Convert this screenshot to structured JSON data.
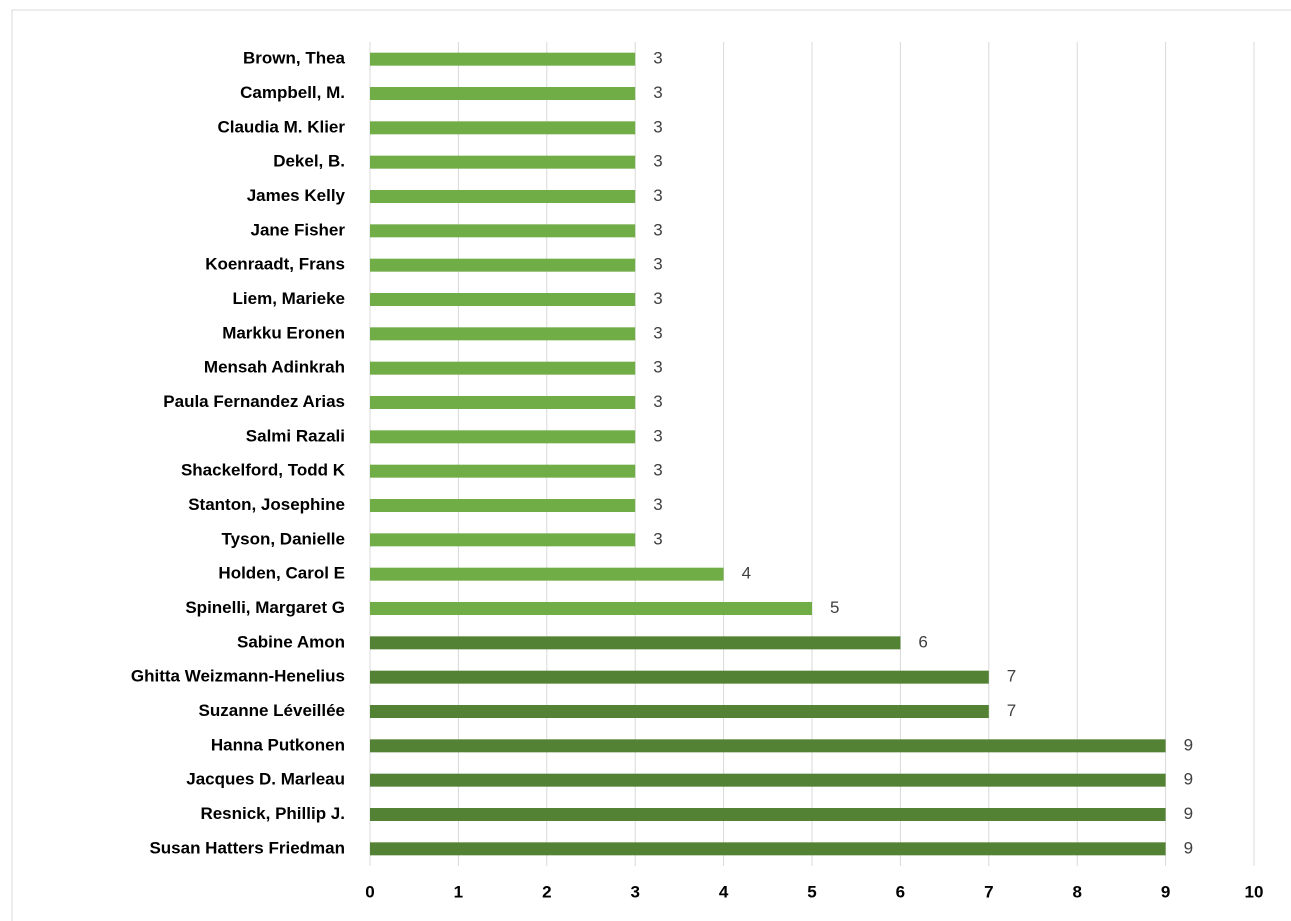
{
  "chart_data": {
    "type": "barh",
    "categories": [
      "Brown, Thea",
      "Campbell, M.",
      "Claudia M. Klier",
      "Dekel, B.",
      "James Kelly",
      "Jane Fisher",
      "Koenraadt, Frans",
      "Liem, Marieke",
      "Markku Eronen",
      "Mensah Adinkrah",
      "Paula Fernandez Arias",
      "Salmi Razali",
      "Shackelford, Todd K",
      "Stanton, Josephine",
      "Tyson, Danielle",
      "Holden, Carol E",
      "Spinelli, Margaret G",
      "Sabine Amon",
      "Ghitta Weizmann-Henelius",
      "Suzanne Léveillée",
      "Hanna Putkonen",
      "Jacques D. Marleau",
      "Resnick, Phillip J.",
      "Susan Hatters Friedman"
    ],
    "values": [
      3,
      3,
      3,
      3,
      3,
      3,
      3,
      3,
      3,
      3,
      3,
      3,
      3,
      3,
      3,
      4,
      5,
      6,
      7,
      7,
      9,
      9,
      9,
      9
    ],
    "colors": [
      "#70ad47",
      "#70ad47",
      "#70ad47",
      "#70ad47",
      "#70ad47",
      "#70ad47",
      "#70ad47",
      "#70ad47",
      "#70ad47",
      "#70ad47",
      "#70ad47",
      "#70ad47",
      "#70ad47",
      "#70ad47",
      "#70ad47",
      "#70ad47",
      "#70ad47",
      "#548235",
      "#548235",
      "#548235",
      "#548235",
      "#548235",
      "#548235",
      "#548235"
    ],
    "xlim": [
      0,
      10
    ],
    "xticks": [
      0,
      1,
      2,
      3,
      4,
      5,
      6,
      7,
      8,
      9,
      10
    ],
    "grid": true
  }
}
